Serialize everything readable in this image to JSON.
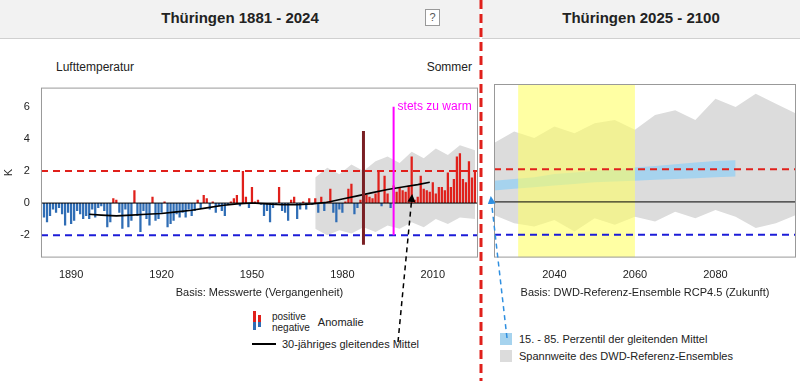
{
  "chart_data": [
    {
      "type": "bar",
      "title": "Thüringen 1881 - 2024",
      "help_button": "?",
      "subtitle": "Lufttemperatur",
      "season_label": "Sommer",
      "x_label": "Basis: Messwerte (Vergangenheit)",
      "y_label": "K",
      "xlim": [
        1880,
        2025
      ],
      "xticks": [
        1890,
        1920,
        1950,
        1980,
        2010
      ],
      "ylim": [
        -3.4,
        7.2
      ],
      "yticks": [
        -2,
        0,
        2,
        4,
        6
      ],
      "grid": false,
      "reference_lines": [
        {
          "value": 2,
          "color": "#e0201b",
          "line_style": "dashed"
        },
        {
          "value": -2,
          "color": "#1c1cd8",
          "line_style": "dashed"
        },
        {
          "value": 0,
          "color": "#000000",
          "line_style": "solid"
        }
      ],
      "annotations": [
        {
          "x": 1987,
          "ymin": -2.6,
          "ymax": 4.5,
          "color": "#7a1f24"
        },
        {
          "x": 1997,
          "ymin": -2,
          "ymax": 6,
          "color": "#ff00ff",
          "text": "stets zu warm"
        }
      ],
      "series": [
        {
          "name": "Anomalie",
          "type": "bar",
          "parts": [
            {
              "name": "positive",
              "color": "#e0201b"
            },
            {
              "name": "negative",
              "color": "#2f6db5"
            }
          ],
          "x": [
            1881,
            1882,
            1883,
            1884,
            1885,
            1886,
            1887,
            1888,
            1889,
            1890,
            1891,
            1892,
            1893,
            1894,
            1895,
            1896,
            1897,
            1898,
            1899,
            1900,
            1901,
            1902,
            1903,
            1904,
            1905,
            1906,
            1907,
            1908,
            1909,
            1910,
            1911,
            1912,
            1913,
            1914,
            1915,
            1916,
            1917,
            1918,
            1919,
            1920,
            1921,
            1922,
            1923,
            1924,
            1925,
            1926,
            1927,
            1928,
            1929,
            1930,
            1931,
            1932,
            1933,
            1934,
            1935,
            1936,
            1937,
            1938,
            1939,
            1940,
            1941,
            1942,
            1943,
            1944,
            1945,
            1946,
            1947,
            1948,
            1949,
            1950,
            1951,
            1952,
            1953,
            1954,
            1955,
            1956,
            1957,
            1958,
            1959,
            1960,
            1961,
            1962,
            1963,
            1964,
            1965,
            1966,
            1967,
            1968,
            1969,
            1970,
            1971,
            1972,
            1973,
            1974,
            1975,
            1976,
            1977,
            1978,
            1979,
            1980,
            1981,
            1982,
            1983,
            1984,
            1985,
            1986,
            1987,
            1988,
            1989,
            1990,
            1991,
            1992,
            1993,
            1994,
            1995,
            1996,
            1997,
            1998,
            1999,
            2000,
            2001,
            2002,
            2003,
            2004,
            2005,
            2006,
            2007,
            2008,
            2009,
            2010,
            2011,
            2012,
            2013,
            2014,
            2015,
            2016,
            2017,
            2018,
            2019,
            2020,
            2021,
            2022,
            2023,
            2024
          ],
          "values": [
            -0.9,
            -1.2,
            -0.8,
            -0.4,
            -0.6,
            -0.3,
            -0.7,
            -1.4,
            -0.6,
            -1.3,
            -1.1,
            -0.5,
            -0.7,
            -1.0,
            -0.8,
            -1.0,
            -0.4,
            -0.9,
            -0.3,
            -0.2,
            -0.5,
            -1.5,
            -1.2,
            0.3,
            0.2,
            -0.6,
            -1.6,
            -0.4,
            -1.5,
            -1.1,
            0.8,
            -0.8,
            -1.8,
            -0.5,
            -1.0,
            -1.4,
            0.4,
            -1.1,
            -1.0,
            -0.6,
            0.1,
            -1.5,
            -1.3,
            -1.1,
            -0.7,
            -0.9,
            -0.6,
            -0.9,
            -0.4,
            -0.8,
            -0.5,
            0.2,
            -0.3,
            0.5,
            0.3,
            -0.4,
            0.1,
            -0.6,
            -0.2,
            -0.5,
            -0.8,
            -0.1,
            0.1,
            0.3,
            0.5,
            -0.2,
            2.0,
            0.4,
            -0.3,
            1.0,
            0.1,
            0.2,
            -0.1,
            -0.8,
            -0.5,
            -1.2,
            -0.3,
            -0.1,
            1.0,
            -0.5,
            -0.6,
            -1.1,
            0.2,
            0.4,
            -1.0,
            -0.4,
            0.1,
            -0.4,
            0.3,
            -0.1,
            0.3,
            -0.6,
            0.4,
            -0.5,
            0.1,
            0.9,
            -0.6,
            -1.2,
            -0.4,
            -0.6,
            0.1,
            0.9,
            1.2,
            -0.7,
            -0.3,
            0.2,
            -1.0,
            0.5,
            0.4,
            0.3,
            0.6,
            2.0,
            -0.2,
            1.7,
            0.6,
            -0.3,
            1.1,
            0.7,
            1.0,
            0.8,
            0.7,
            1.1,
            2.9,
            0.2,
            0.4,
            1.7,
            0.9,
            0.8,
            0.7,
            1.3,
            0.6,
            1.0,
            1.0,
            0.8,
            1.9,
            1.0,
            1.5,
            2.9,
            3.1,
            1.5,
            1.3,
            2.6,
            1.6,
            2.0
          ],
          "colors": [
            "#2f6db5",
            "#2f6db5",
            "#2f6db5",
            "#2f6db5",
            "#2f6db5",
            "#2f6db5",
            "#2f6db5",
            "#2f6db5",
            "#2f6db5",
            "#2f6db5",
            "#2f6db5",
            "#2f6db5",
            "#2f6db5",
            "#2f6db5",
            "#2f6db5",
            "#2f6db5",
            "#2f6db5",
            "#2f6db5",
            "#2f6db5",
            "#2f6db5",
            "#2f6db5",
            "#2f6db5",
            "#2f6db5",
            "#e0201b",
            "#e0201b",
            "#2f6db5",
            "#2f6db5",
            "#2f6db5",
            "#2f6db5",
            "#2f6db5",
            "#e0201b",
            "#2f6db5",
            "#2f6db5",
            "#2f6db5",
            "#2f6db5",
            "#2f6db5",
            "#e0201b",
            "#2f6db5",
            "#2f6db5",
            "#2f6db5",
            "#e0201b",
            "#2f6db5",
            "#2f6db5",
            "#2f6db5",
            "#2f6db5",
            "#2f6db5",
            "#2f6db5",
            "#2f6db5",
            "#2f6db5",
            "#2f6db5",
            "#2f6db5",
            "#e0201b",
            "#2f6db5",
            "#e0201b",
            "#e0201b",
            "#2f6db5",
            "#e0201b",
            "#2f6db5",
            "#2f6db5",
            "#2f6db5",
            "#2f6db5",
            "#2f6db5",
            "#e0201b",
            "#e0201b",
            "#e0201b",
            "#2f6db5",
            "#e0201b",
            "#e0201b",
            "#2f6db5",
            "#e0201b",
            "#e0201b",
            "#e0201b",
            "#2f6db5",
            "#2f6db5",
            "#2f6db5",
            "#2f6db5",
            "#2f6db5",
            "#2f6db5",
            "#e0201b",
            "#2f6db5",
            "#2f6db5",
            "#2f6db5",
            "#e0201b",
            "#e0201b",
            "#2f6db5",
            "#2f6db5",
            "#e0201b",
            "#2f6db5",
            "#e0201b",
            "#2f6db5",
            "#e0201b",
            "#2f6db5",
            "#e0201b",
            "#2f6db5",
            "#e0201b",
            "#e0201b",
            "#2f6db5",
            "#2f6db5",
            "#2f6db5",
            "#2f6db5",
            "#e0201b",
            "#e0201b",
            "#e0201b",
            "#2f6db5",
            "#2f6db5",
            "#e0201b",
            "#2f6db5",
            "#e0201b",
            "#e0201b",
            "#e0201b",
            "#e0201b",
            "#e0201b",
            "#2f6db5",
            "#e0201b",
            "#e0201b",
            "#2f6db5",
            "#e0201b",
            "#e0201b",
            "#e0201b",
            "#e0201b",
            "#e0201b",
            "#e0201b",
            "#e0201b",
            "#e0201b",
            "#e0201b",
            "#e0201b",
            "#e0201b",
            "#e0201b",
            "#e0201b",
            "#e0201b",
            "#e0201b",
            "#e0201b",
            "#e0201b",
            "#e0201b",
            "#e0201b",
            "#e0201b",
            "#e0201b",
            "#e0201b",
            "#e0201b",
            "#e0201b",
            "#e0201b",
            "#e0201b",
            "#e0201b",
            "#e0201b"
          ]
        },
        {
          "name": "30-jähriges gleitendes Mittel",
          "type": "line",
          "color": "#000000",
          "line_style": "solid",
          "x": [
            1896,
            1900,
            1905,
            1910,
            1915,
            1920,
            1925,
            1930,
            1935,
            1940,
            1945,
            1950,
            1955,
            1960,
            1965,
            1970,
            1975,
            1980,
            1985,
            1990,
            1995,
            2000,
            2005,
            2009
          ],
          "values": [
            -0.7,
            -0.75,
            -0.8,
            -0.75,
            -0.7,
            -0.65,
            -0.55,
            -0.45,
            -0.3,
            -0.15,
            -0.05,
            0.0,
            -0.05,
            -0.1,
            -0.1,
            -0.05,
            0.05,
            0.25,
            0.45,
            0.65,
            0.85,
            1.0,
            1.15,
            1.3
          ]
        },
        {
          "name": "Spannweite des DWD-Referenz-Ensembles",
          "type": "range",
          "color": "#dcdcdc",
          "x": [
            1971,
            1975,
            1979,
            1983,
            1987,
            1991,
            1995,
            1999,
            2003,
            2007,
            2011,
            2015,
            2019,
            2024
          ],
          "low": [
            -1.6,
            -2.0,
            -1.7,
            -1.9,
            -1.5,
            -1.8,
            -1.4,
            -1.6,
            -1.2,
            -1.5,
            -1.0,
            -1.3,
            -0.9,
            -1.0
          ],
          "high": [
            1.6,
            2.2,
            1.8,
            2.4,
            2.0,
            2.6,
            2.9,
            2.5,
            3.2,
            2.8,
            3.4,
            3.0,
            3.6,
            3.3
          ]
        }
      ]
    },
    {
      "type": "range",
      "title": "Thüringen 2025 - 2100",
      "x_label": "Basis: DWD-Referenz-Ensemble RCP4.5 (Zukunft)",
      "xlim": [
        2025,
        2100
      ],
      "xticks": [
        2040,
        2060,
        2080
      ],
      "ylim": [
        -3.4,
        7.2
      ],
      "tick_labels": "x",
      "grid": false,
      "highlight": {
        "x": [
          2031,
          2060
        ],
        "color": "#ffff66"
      },
      "reference_lines": [
        {
          "value": 2,
          "color": "#e0201b",
          "line_style": "dashed"
        },
        {
          "value": -2,
          "color": "#1c1cd8",
          "line_style": "dashed"
        },
        {
          "value": 0,
          "color": "#000000",
          "line_style": "solid"
        }
      ],
      "series": [
        {
          "name": "15. - 85. Perzentil der gleitenden Mittel",
          "type": "range",
          "color": "#a6d3ee",
          "x": [
            2025,
            2030,
            2035,
            2040,
            2045,
            2050,
            2055,
            2060,
            2065,
            2070,
            2075,
            2080,
            2085
          ],
          "low": [
            0.7,
            0.8,
            0.9,
            1.0,
            1.1,
            1.2,
            1.25,
            1.3,
            1.35,
            1.4,
            1.45,
            1.5,
            1.55
          ],
          "high": [
            1.3,
            1.4,
            1.5,
            1.7,
            1.8,
            1.9,
            2.0,
            2.1,
            2.2,
            2.3,
            2.4,
            2.5,
            2.55
          ]
        },
        {
          "name": "Spannweite des DWD-Referenz-Ensembles",
          "type": "range",
          "color": "#dcdcdc",
          "x": [
            2025,
            2030,
            2035,
            2040,
            2045,
            2050,
            2055,
            2060,
            2065,
            2070,
            2075,
            2080,
            2085,
            2090,
            2095,
            2100
          ],
          "low": [
            -0.8,
            -1.3,
            -1.5,
            -1.1,
            -1.8,
            -1.0,
            -1.4,
            -0.9,
            -1.2,
            -0.6,
            -1.0,
            -0.5,
            -0.9,
            -1.6,
            -1.3,
            -0.8
          ],
          "high": [
            3.6,
            4.3,
            3.9,
            4.6,
            4.2,
            4.8,
            5.0,
            4.4,
            5.3,
            5.6,
            5.0,
            6.3,
            5.8,
            6.6,
            6.0,
            5.4
          ]
        }
      ]
    }
  ]
}
